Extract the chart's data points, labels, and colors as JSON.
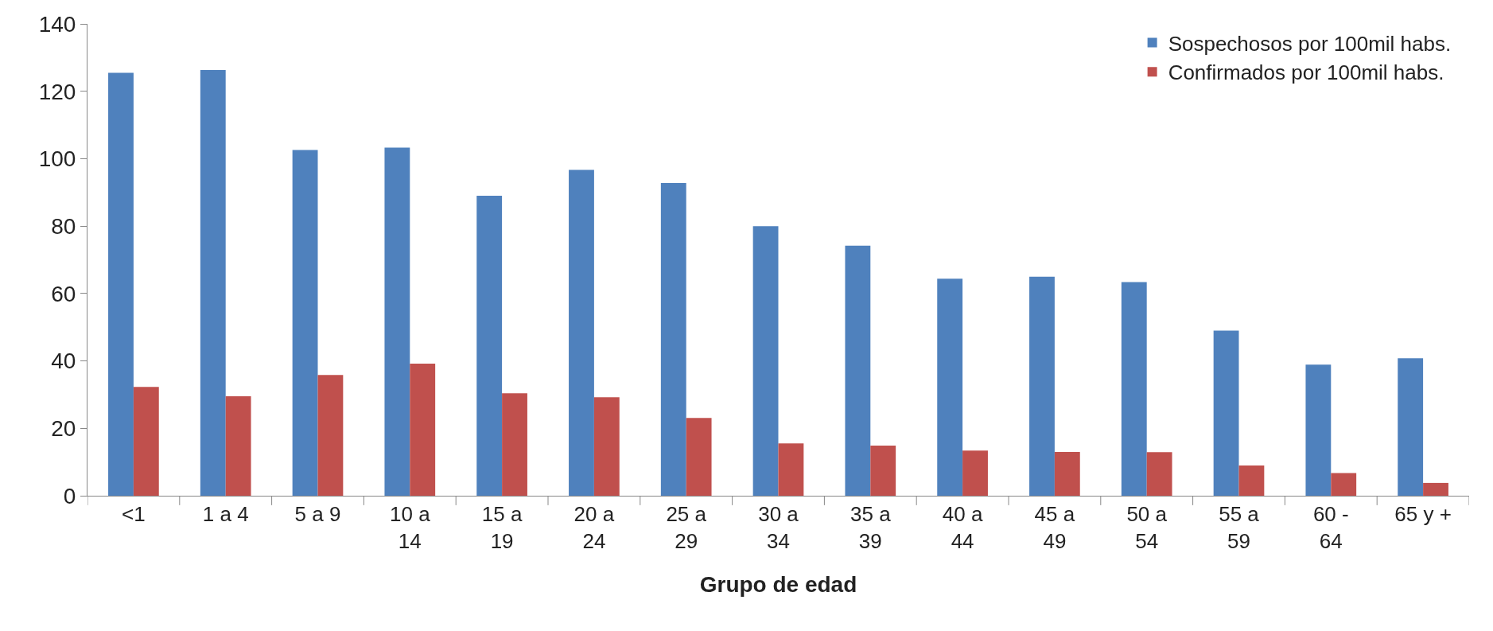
{
  "chart_data": {
    "type": "bar",
    "xlabel": "Grupo de edad",
    "categories": [
      "<1",
      "1 a 4",
      "5 a 9",
      "10 a\n14",
      "15 a\n19",
      "20 a\n24",
      "25 a\n29",
      "30 a\n34",
      "35 a\n39",
      "40 a\n44",
      "45 a\n49",
      "50 a\n54",
      "55 a\n59",
      "60 -\n64",
      "65 y +"
    ],
    "series": [
      {
        "name": "Sospechosos por 100mil habs.",
        "color": "#4f81bd",
        "values": [
          125.5,
          126.3,
          102.6,
          103.3,
          89,
          96.7,
          92.8,
          80,
          74.2,
          64.4,
          65,
          63.4,
          49,
          38.9,
          40.8
        ]
      },
      {
        "name": "Confirmados por 100mil habs.",
        "color": "#c0504d",
        "values": [
          32.3,
          29.5,
          35.8,
          39.2,
          30.4,
          29.2,
          23.1,
          15.5,
          14.9,
          13.4,
          13,
          12.9,
          9,
          6.7,
          3.8
        ]
      }
    ],
    "ylim": [
      0,
      140
    ],
    "yticks": [
      0,
      20,
      40,
      60,
      80,
      100,
      120,
      140
    ],
    "legend": "top right"
  }
}
